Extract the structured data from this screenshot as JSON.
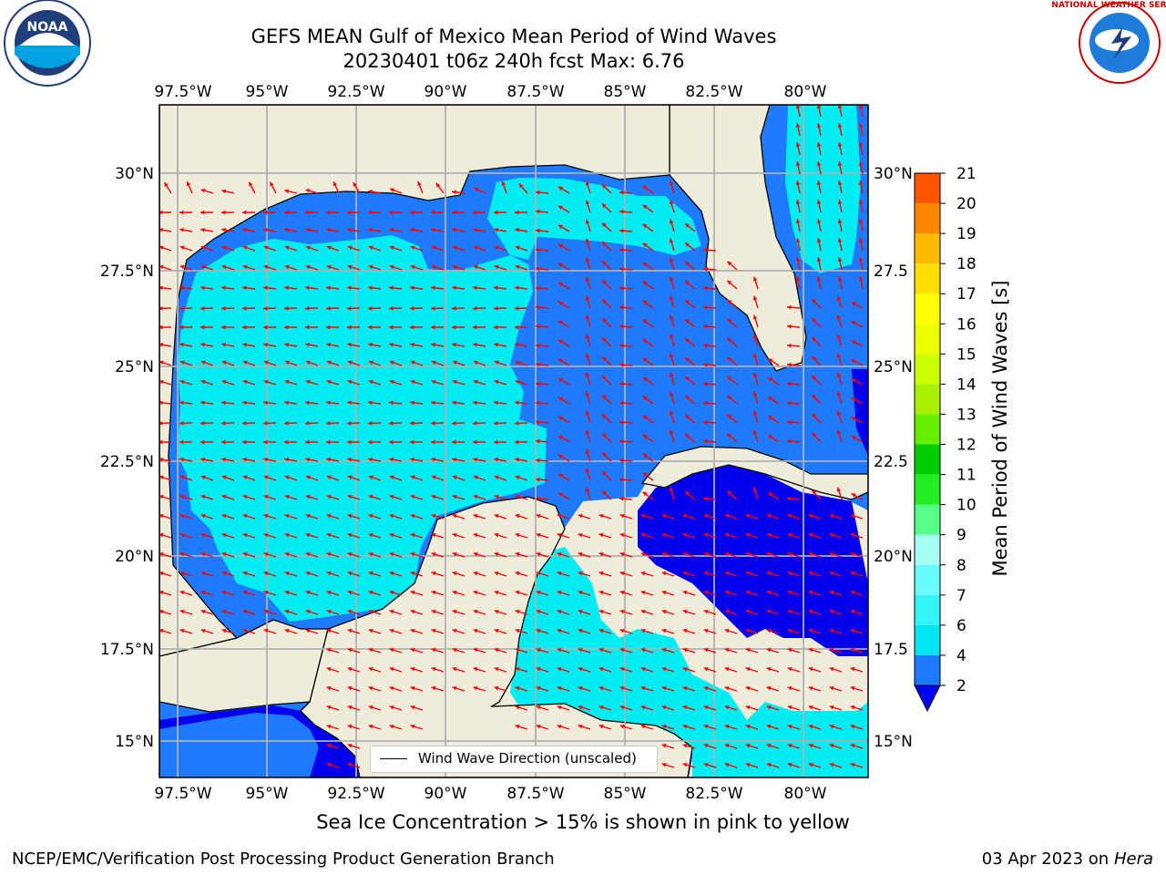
{
  "title": {
    "line1": "GEFS MEAN Gulf of Mexico Mean Period of Wind Waves",
    "line2": "20230401 t06z 240h fcst   Max: 6.76"
  },
  "map": {
    "lon_range": [
      -98.0,
      -78.25
    ],
    "lat_range": [
      14.0,
      31.75
    ],
    "lon_ticks": [
      "97.5°W",
      "95°W",
      "92.5°W",
      "90°W",
      "87.5°W",
      "85°W",
      "82.5°W",
      "80°W"
    ],
    "lat_ticks_left": [
      "30°N",
      "27.5°N",
      "25°N",
      "22.5°N",
      "20°N",
      "17.5°N",
      "15°N"
    ],
    "lat_ticks_right": [
      "30°N",
      "27.5",
      "25°N",
      "22.5",
      "20°N",
      "17.5",
      "15°N"
    ],
    "land_color": "#efedda",
    "coast_color": "#000000",
    "arrow_color": "#ff0000",
    "legend_label": "Wind Wave Direction (unscaled)"
  },
  "colorbar": {
    "label": "Mean Period of Wind Waves [s]",
    "ticks": [
      "2",
      "4",
      "6",
      "7",
      "8",
      "9",
      "10",
      "11",
      "12",
      "13",
      "14",
      "15",
      "16",
      "17",
      "18",
      "19",
      "20",
      "21"
    ],
    "colors": [
      "#1e7bff",
      "#00e6f0",
      "#33f5f5",
      "#66fafa",
      "#a6fff5",
      "#55ff88",
      "#22ee22",
      "#00cc00",
      "#66ee00",
      "#aaee00",
      "#ccff00",
      "#eeff00",
      "#ffff00",
      "#ffdd00",
      "#ffbb00",
      "#ff8800",
      "#ff5500",
      "#ff2200",
      "#ff0000"
    ],
    "under_color": "#0000ff"
  },
  "footer": {
    "note": "Sea Ice Concentration > 15% is shown in pink to yellow",
    "credit_left": "NCEP/EMC/Verification Post Processing Product Generation Branch",
    "credit_date": "03 Apr 2023 on ",
    "credit_machine": "Hera"
  },
  "logos": {
    "left": "NOAA",
    "right": "NATIONAL WEATHER SERVICE"
  }
}
